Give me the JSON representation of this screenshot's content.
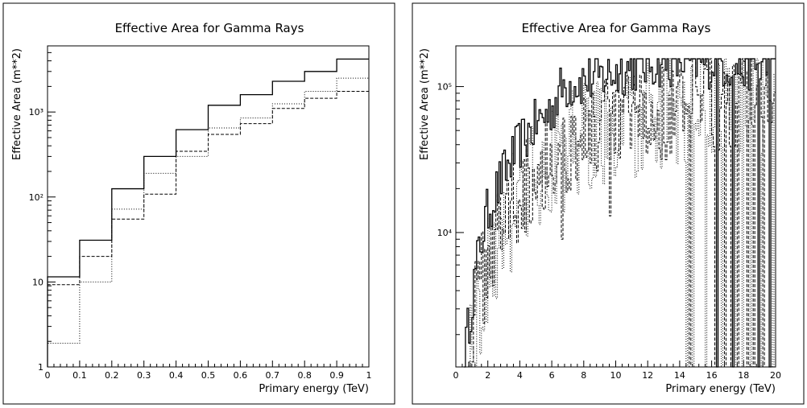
{
  "chart_data": [
    {
      "type": "line",
      "step": true,
      "title": "Effective Area for Gamma Rays",
      "xlabel": "Primary energy (TeV)",
      "ylabel": "Effective Area (m**2)",
      "xlim": [
        0,
        1
      ],
      "ylim": [
        1,
        6000
      ],
      "yscale": "log",
      "xticks": [
        0,
        0.1,
        0.2,
        0.3,
        0.4,
        0.5,
        0.6,
        0.7,
        0.8,
        0.9,
        1
      ],
      "xtick_labels": [
        "0",
        "0.1",
        "0.2",
        "0.3",
        "0.4",
        "0.5",
        "0.6",
        "0.7",
        "0.8",
        "0.9",
        "1"
      ],
      "yticks": [
        1,
        10,
        100,
        1000
      ],
      "ytick_labels": [
        "1",
        "10",
        "10²",
        "10³"
      ],
      "x_edges": [
        0,
        0.1,
        0.2,
        0.3,
        0.4,
        0.5,
        0.6,
        0.7,
        0.8,
        0.9,
        1
      ],
      "series": [
        {
          "style": "solid",
          "values": [
            11.5,
            31,
            125,
            300,
            620,
            1200,
            1600,
            2300,
            3000,
            4200
          ]
        },
        {
          "style": "dashed",
          "values": [
            9.3,
            20,
            55,
            108,
            345,
            545,
            730,
            1100,
            1450,
            1750
          ]
        },
        {
          "style": "dotted",
          "values": [
            1.9,
            10,
            72,
            190,
            300,
            650,
            850,
            1250,
            1750,
            2500
          ]
        }
      ]
    },
    {
      "type": "line",
      "step": true,
      "title": "Effective Area for Gamma Rays",
      "xlabel": "Primary energy (TeV)",
      "ylabel": "Effective Area (m**2)",
      "xlim": [
        0,
        20
      ],
      "ylim": [
        1200,
        190000
      ],
      "yscale": "log",
      "xticks": [
        0,
        2,
        4,
        6,
        8,
        10,
        12,
        14,
        16,
        18,
        20
      ],
      "xtick_labels": [
        "0",
        "2",
        "4",
        "6",
        "8",
        "10",
        "12",
        "14",
        "16",
        "18",
        "20"
      ],
      "yticks": [
        10000,
        100000
      ],
      "ytick_labels": [
        "10⁴",
        "10⁵"
      ],
      "bin_width": 0.1,
      "series": [
        {
          "style": "solid",
          "anchors": [
            [
              0.5,
              1250
            ],
            [
              1,
              3500
            ],
            [
              1.5,
              8000
            ],
            [
              2,
              14000
            ],
            [
              3,
              25000
            ],
            [
              4,
              40000
            ],
            [
              5,
              55000
            ],
            [
              6,
              70000
            ],
            [
              6.7,
              100000
            ],
            [
              8,
              110000
            ],
            [
              9,
              115000
            ],
            [
              10,
              125000
            ],
            [
              11,
              135000
            ],
            [
              12,
              145000
            ],
            [
              14,
              150000
            ],
            [
              16,
              145000
            ],
            [
              18,
              140000
            ],
            [
              20,
              140000
            ]
          ],
          "noise": 0.18,
          "ceiling": 155000,
          "dropouts": [
            [
              16.3,
              1200
            ],
            [
              17.3,
              1200
            ],
            [
              18.9,
              1200
            ],
            [
              19.6,
              1200
            ]
          ]
        },
        {
          "style": "dashed",
          "anchors": [
            [
              0.7,
              1250
            ],
            [
              1,
              2200
            ],
            [
              2,
              7000
            ],
            [
              3,
              14000
            ],
            [
              4,
              20000
            ],
            [
              5,
              27000
            ],
            [
              6,
              33000
            ],
            [
              7,
              40000
            ],
            [
              8,
              45000
            ],
            [
              10,
              55000
            ],
            [
              12,
              60000
            ],
            [
              14,
              70000
            ],
            [
              16,
              80000
            ],
            [
              18,
              90000
            ],
            [
              20,
              100000
            ]
          ],
          "noise": 0.35,
          "ceiling": 155000,
          "dropouts": [
            [
              6.6,
              9000
            ],
            [
              9.6,
              13000
            ],
            [
              14.6,
              1200
            ],
            [
              16.2,
              1200
            ],
            [
              16.8,
              1200
            ],
            [
              17.2,
              1200
            ],
            [
              17.6,
              1200
            ],
            [
              18.2,
              1200
            ],
            [
              18.6,
              1200
            ],
            [
              19.2,
              1200
            ]
          ]
        },
        {
          "style": "dotted",
          "anchors": [
            [
              0.8,
              1250
            ],
            [
              1,
              1800
            ],
            [
              2,
              5000
            ],
            [
              3,
              11000
            ],
            [
              4,
              17000
            ],
            [
              5,
              24000
            ],
            [
              6,
              30000
            ],
            [
              7,
              36000
            ],
            [
              8,
              42000
            ],
            [
              10,
              52000
            ],
            [
              12,
              58000
            ],
            [
              14,
              65000
            ],
            [
              16,
              72000
            ],
            [
              18,
              80000
            ],
            [
              20,
              90000
            ]
          ],
          "noise": 0.4,
          "ceiling": 155000,
          "dropouts": [
            [
              14.4,
              1200
            ],
            [
              14.8,
              1200
            ],
            [
              15.6,
              1200
            ],
            [
              16.6,
              1200
            ],
            [
              17.4,
              1200
            ],
            [
              17.9,
              1200
            ],
            [
              18.4,
              1200
            ],
            [
              19.0,
              1200
            ],
            [
              19.8,
              1200
            ]
          ]
        }
      ]
    }
  ]
}
